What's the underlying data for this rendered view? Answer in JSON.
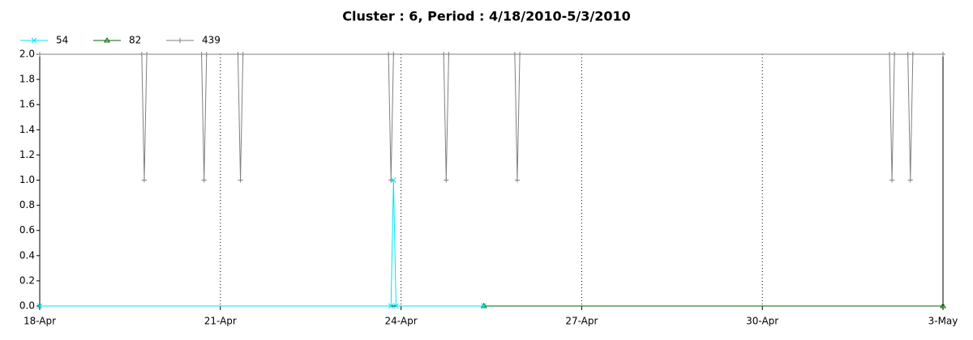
{
  "chart_data": {
    "type": "line",
    "title": "Cluster : 6, Period : 4/18/2010-5/3/2010",
    "series": [
      {
        "name": "54",
        "color": "#00e5ee",
        "marker": "x",
        "x": [
          "2010-04-18 00:00",
          "2010-04-23 20:00",
          "2010-04-23 21:00",
          "2010-04-23 22:00",
          "2010-04-25 09:00"
        ],
        "values": [
          0,
          0,
          1,
          0,
          0
        ]
      },
      {
        "name": "82",
        "color": "#006400",
        "marker": "triangle",
        "x": [
          "2010-04-25 09:00",
          "2010-05-03 00:00"
        ],
        "values": [
          0,
          0
        ]
      },
      {
        "name": "439",
        "color": "#808080",
        "marker": "plus",
        "x": [
          "2010-04-18 00:00",
          "2010-04-19 16:40",
          "2010-04-19 17:40",
          "2010-04-19 18:40",
          "2010-04-20 16:30",
          "2010-04-20 17:30",
          "2010-04-20 18:30",
          "2010-04-21 07:00",
          "2010-04-21 08:00",
          "2010-04-21 09:00",
          "2010-04-23 19:00",
          "2010-04-23 20:00",
          "2010-04-23 21:00",
          "2010-04-24 17:00",
          "2010-04-24 18:00",
          "2010-04-24 19:00",
          "2010-04-25 21:20",
          "2010-04-25 22:20",
          "2010-04-25 23:20",
          "2010-05-02 02:40",
          "2010-05-02 03:40",
          "2010-05-02 04:40",
          "2010-05-02 10:00",
          "2010-05-02 11:00",
          "2010-05-02 12:00",
          "2010-05-03 00:00"
        ],
        "values": [
          2,
          2,
          1,
          2,
          2,
          1,
          2,
          2,
          1,
          2,
          2,
          1,
          2,
          2,
          1,
          2,
          2,
          1,
          2,
          2,
          1,
          2,
          2,
          1,
          2,
          2
        ]
      }
    ],
    "xlim": [
      "2010-04-18 00:00",
      "2010-05-03 00:00"
    ],
    "xticks": [
      {
        "value": "2010-04-18 00:00",
        "label": "18-Apr"
      },
      {
        "value": "2010-04-21 00:00",
        "label": "21-Apr"
      },
      {
        "value": "2010-04-24 00:00",
        "label": "24-Apr"
      },
      {
        "value": "2010-04-27 00:00",
        "label": "27-Apr"
      },
      {
        "value": "2010-04-30 00:00",
        "label": "30-Apr"
      },
      {
        "value": "2010-05-03 00:00",
        "label": "3-May"
      }
    ],
    "ylim": [
      0,
      2
    ],
    "yticks": [
      {
        "value": 0,
        "label": "0.0"
      },
      0.2,
      0.4,
      0.6,
      0.8,
      {
        "value": 1,
        "label": "1.0"
      },
      1.2,
      1.4,
      1.6,
      1.8,
      {
        "value": 2,
        "label": "2.0"
      }
    ],
    "xgrid": true
  }
}
